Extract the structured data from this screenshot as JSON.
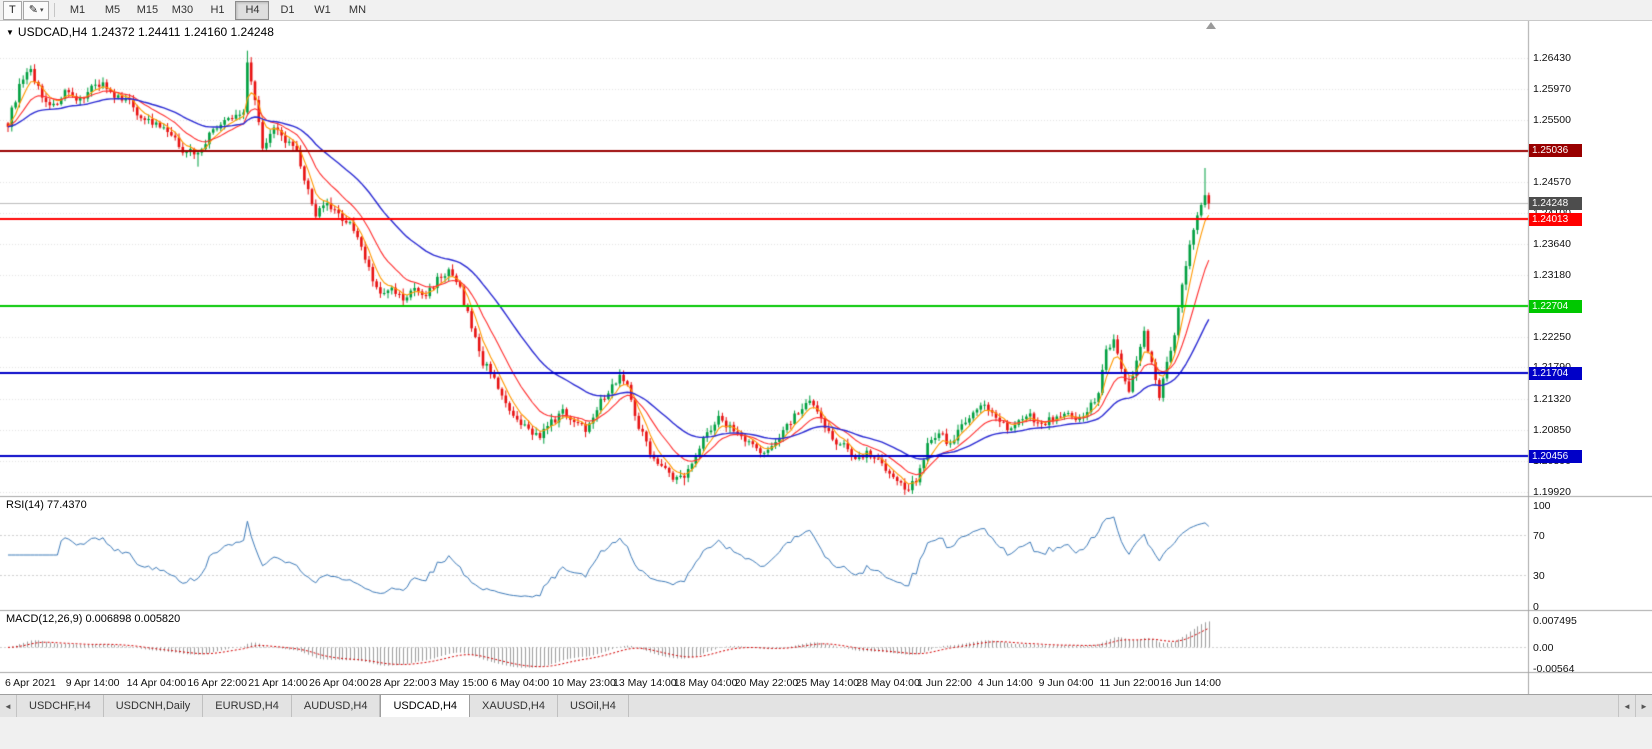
{
  "toolbar": {
    "tool_button": "T",
    "draw_tool_glyph": "✎",
    "dropdown_glyph": "▾",
    "timeframes": [
      "M1",
      "M5",
      "M15",
      "M30",
      "H1",
      "H4",
      "D1",
      "W1",
      "MN"
    ],
    "active_timeframe": "H4"
  },
  "chart": {
    "menu_glyph": "▼",
    "title": "USDCAD,H4",
    "ohlc_text": "1.24372 1.24411 1.24160 1.24248",
    "price_axis_ticks": [
      "1.26430",
      "1.25970",
      "1.25500",
      "1.25030",
      "1.24570",
      "1.24100",
      "1.23640",
      "1.23180",
      "1.22710",
      "1.22250",
      "1.21790",
      "1.21320",
      "1.20850",
      "1.20390",
      "1.19920"
    ],
    "current_price": {
      "label": "1.24248",
      "value": 1.24248,
      "color": "#4d4d4d"
    },
    "hlines": [
      {
        "label": "1.25036",
        "value": 1.25036,
        "color": "#990000"
      },
      {
        "label": "1.24013",
        "value": 1.24013,
        "color": "#ff0000"
      },
      {
        "label": "1.22704",
        "value": 1.22704,
        "color": "#00c800"
      },
      {
        "label": "1.21704",
        "value": 1.21704,
        "color": "#0000c8"
      },
      {
        "label": "1.20456",
        "value": 1.20456,
        "color": "#0000c8"
      }
    ],
    "time_axis": [
      "6 Apr 2021",
      "9 Apr 14:00",
      "14 Apr 04:00",
      "16 Apr 22:00",
      "21 Apr 14:00",
      "26 Apr 04:00",
      "28 Apr 22:00",
      "3 May 15:00",
      "6 May 04:00",
      "10 May 23:00",
      "13 May 14:00",
      "18 May 04:00",
      "20 May 22:00",
      "25 May 14:00",
      "28 May 04:00",
      "1 Jun 22:00",
      "4 Jun 14:00",
      "9 Jun 04:00",
      "11 Jun 22:00",
      "16 Jun 14:00"
    ]
  },
  "indicators": {
    "rsi": {
      "label": "RSI(14) 77.4370",
      "period": 14,
      "value": 77.437,
      "axis_ticks": [
        "100",
        "70",
        "30",
        "0"
      ],
      "levels": [
        70,
        30
      ],
      "line_color": "#3f7cba"
    },
    "macd": {
      "label": "MACD(12,26,9) 0.006898 0.005820",
      "macd_value": 0.006898,
      "signal_value": 0.00582,
      "axis_ticks": [
        "0.007495",
        "0.00",
        "-0.00564"
      ],
      "scale_max": 0.007495,
      "scale_min": -0.00564,
      "histogram_color": "#9e9e9e",
      "signal_color": "#d40000"
    }
  },
  "tabs": {
    "scroll_left_glyph": "◄",
    "scroll_right_glyph": "►",
    "items": [
      "USDCHF,H4",
      "USDCNH,Daily",
      "EURUSD,H4",
      "AUDUSD,H4",
      "USDCAD,H4",
      "XAUUSD,H4",
      "USOil,H4"
    ],
    "active": "USDCAD,H4"
  },
  "chart_data": {
    "type": "candlestick",
    "symbol": "USDCAD",
    "timeframe": "H4",
    "title": "USDCAD,H4 1.24372 1.24411 1.24160 1.24248",
    "last_bar": {
      "open": 1.24372,
      "high": 1.24411,
      "low": 1.2416,
      "close": 1.24248
    },
    "ylim": [
      1.1992,
      1.2643
    ],
    "bars_total": 317,
    "up_color": "#00a040",
    "down_color": "#e81212",
    "ma_colors": {
      "fast": "#ff9900",
      "medium": "#ff3030",
      "slow": "#2b2bd4"
    },
    "ma_periods": {
      "fast": 5,
      "medium": 13,
      "slow": 34
    },
    "hline_levels": [
      1.25036,
      1.24013,
      1.22704,
      1.21704,
      1.20456
    ],
    "time_labels_bar_indices": [
      0,
      16,
      32,
      48,
      64,
      80,
      96,
      112,
      128,
      144,
      160,
      176,
      192,
      208,
      224,
      240,
      256,
      272,
      288,
      304
    ],
    "price_path_anchors": [
      [
        0,
        1.2545
      ],
      [
        3,
        1.26
      ],
      [
        6,
        1.2625
      ],
      [
        9,
        1.2585
      ],
      [
        12,
        1.257
      ],
      [
        15,
        1.2592
      ],
      [
        18,
        1.2575
      ],
      [
        22,
        1.26
      ],
      [
        25,
        1.2606
      ],
      [
        28,
        1.258
      ],
      [
        31,
        1.2586
      ],
      [
        34,
        1.256
      ],
      [
        38,
        1.2545
      ],
      [
        42,
        1.2532
      ],
      [
        46,
        1.2506
      ],
      [
        50,
        1.25
      ],
      [
        54,
        1.2536
      ],
      [
        58,
        1.255
      ],
      [
        62,
        1.2562
      ],
      [
        63,
        1.264
      ],
      [
        65,
        1.258
      ],
      [
        67,
        1.2512
      ],
      [
        70,
        1.2536
      ],
      [
        73,
        1.252
      ],
      [
        76,
        1.25
      ],
      [
        79,
        1.2442
      ],
      [
        81,
        1.241
      ],
      [
        84,
        1.2422
      ],
      [
        87,
        1.2406
      ],
      [
        90,
        1.2396
      ],
      [
        93,
        1.236
      ],
      [
        96,
        1.2312
      ],
      [
        98,
        1.2286
      ],
      [
        101,
        1.2296
      ],
      [
        104,
        1.228
      ],
      [
        107,
        1.2296
      ],
      [
        110,
        1.2286
      ],
      [
        113,
        1.2312
      ],
      [
        116,
        1.2322
      ],
      [
        119,
        1.2296
      ],
      [
        122,
        1.224
      ],
      [
        125,
        1.2186
      ],
      [
        128,
        1.2166
      ],
      [
        131,
        1.212
      ],
      [
        134,
        1.2096
      ],
      [
        137,
        1.2086
      ],
      [
        140,
        1.2076
      ],
      [
        143,
        1.2096
      ],
      [
        146,
        1.2112
      ],
      [
        149,
        1.21
      ],
      [
        152,
        1.2086
      ],
      [
        155,
        1.212
      ],
      [
        158,
        1.2142
      ],
      [
        161,
        1.2168
      ],
      [
        163,
        1.215
      ],
      [
        166,
        1.2092
      ],
      [
        169,
        1.2052
      ],
      [
        172,
        1.2032
      ],
      [
        175,
        1.2012
      ],
      [
        178,
        1.2014
      ],
      [
        181,
        1.2052
      ],
      [
        184,
        1.2082
      ],
      [
        187,
        1.2102
      ],
      [
        190,
        1.209
      ],
      [
        193,
        1.2076
      ],
      [
        196,
        1.2062
      ],
      [
        199,
        1.2046
      ],
      [
        202,
        1.2072
      ],
      [
        205,
        1.2092
      ],
      [
        208,
        1.2112
      ],
      [
        211,
        1.2126
      ],
      [
        214,
        1.21
      ],
      [
        217,
        1.2072
      ],
      [
        220,
        1.2062
      ],
      [
        223,
        1.2042
      ],
      [
        226,
        1.2052
      ],
      [
        229,
        1.2042
      ],
      [
        232,
        1.2022
      ],
      [
        235,
        1.2002
      ],
      [
        237,
        1.1998
      ],
      [
        239,
        1.2012
      ],
      [
        242,
        1.2062
      ],
      [
        245,
        1.2082
      ],
      [
        248,
        1.2062
      ],
      [
        251,
        1.2092
      ],
      [
        254,
        1.2112
      ],
      [
        257,
        1.2122
      ],
      [
        260,
        1.2102
      ],
      [
        263,
        1.2086
      ],
      [
        266,
        1.2096
      ],
      [
        269,
        1.2106
      ],
      [
        272,
        1.2092
      ],
      [
        275,
        1.2102
      ],
      [
        278,
        1.2112
      ],
      [
        281,
        1.2096
      ],
      [
        284,
        1.2112
      ],
      [
        287,
        1.2142
      ],
      [
        289,
        1.2202
      ],
      [
        291,
        1.2216
      ],
      [
        293,
        1.2182
      ],
      [
        295,
        1.2142
      ],
      [
        297,
        1.2192
      ],
      [
        299,
        1.2232
      ],
      [
        301,
        1.2182
      ],
      [
        303,
        1.2136
      ],
      [
        305,
        1.2182
      ],
      [
        307,
        1.2232
      ],
      [
        309,
        1.2302
      ],
      [
        311,
        1.2362
      ],
      [
        313,
        1.2406
      ],
      [
        315,
        1.2437
      ],
      [
        316,
        1.24248
      ]
    ],
    "wick_overrides": {
      "50": {
        "low": 1.248
      },
      "63": {
        "high": 1.2654
      },
      "161": {
        "high": 1.2176
      },
      "178": {
        "low": 1.2002
      },
      "237": {
        "low": 1.1992
      },
      "315": {
        "high": 1.2478
      }
    }
  }
}
